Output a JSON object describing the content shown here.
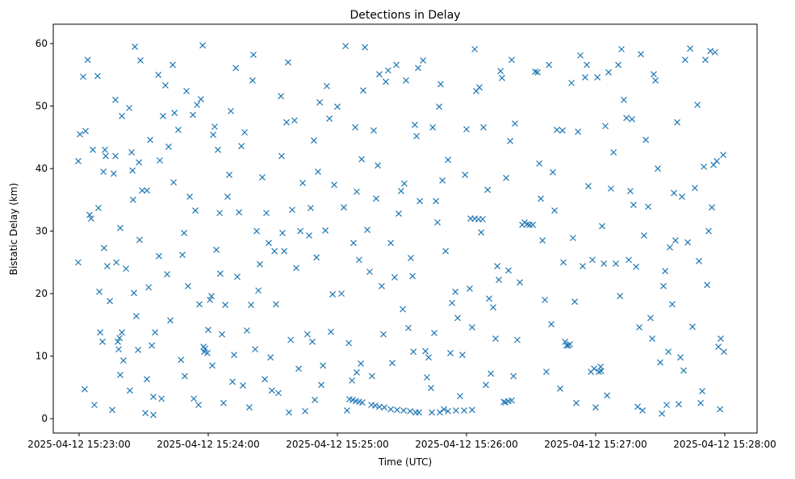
{
  "chart_data": {
    "type": "scatter",
    "title": "Detections in Delay",
    "xlabel": "Time (UTC)",
    "ylabel": "Bistatic Delay (km)",
    "x_units": "seconds after 2025-04-12 15:23:00",
    "xlim": [
      -12,
      315
    ],
    "ylim": [
      -2.3,
      63.1
    ],
    "grid": false,
    "marker": "x",
    "color": "#1f77b4",
    "x_ticks": [
      {
        "value": 0,
        "label": "2025-04-12 15:23:00"
      },
      {
        "value": 60,
        "label": "2025-04-12 15:24:00"
      },
      {
        "value": 120,
        "label": "2025-04-12 15:25:00"
      },
      {
        "value": 180,
        "label": "2025-04-12 15:26:00"
      },
      {
        "value": 240,
        "label": "2025-04-12 15:27:00"
      },
      {
        "value": 300,
        "label": "2025-04-12 15:28:00"
      }
    ],
    "y_ticks": [
      {
        "value": 0,
        "label": "0"
      },
      {
        "value": 10,
        "label": "10"
      },
      {
        "value": 20,
        "label": "20"
      },
      {
        "value": 30,
        "label": "30"
      },
      {
        "value": 40,
        "label": "40"
      },
      {
        "value": 50,
        "label": "50"
      },
      {
        "value": 60,
        "label": "60"
      }
    ],
    "points": [
      [
        -0.4,
        25
      ],
      [
        -0.4,
        41.2
      ],
      [
        0.4,
        45.5
      ],
      [
        1.9,
        54.7
      ],
      [
        3,
        46
      ],
      [
        2.6,
        4.7
      ],
      [
        4,
        57.4
      ],
      [
        4.9,
        32.6
      ],
      [
        5.6,
        32
      ],
      [
        6.4,
        43
      ],
      [
        7.1,
        2.2
      ],
      [
        8.6,
        54.8
      ],
      [
        9,
        33.7
      ],
      [
        9.4,
        20.3
      ],
      [
        9.8,
        13.8
      ],
      [
        10.9,
        12.3
      ],
      [
        11.3,
        39.5
      ],
      [
        11.6,
        27.3
      ],
      [
        12,
        43
      ],
      [
        12.4,
        42
      ],
      [
        13.1,
        24.4
      ],
      [
        14.3,
        18.8
      ],
      [
        15.4,
        1.4
      ],
      [
        16.1,
        39.2
      ],
      [
        16.9,
        42
      ],
      [
        16.9,
        51
      ],
      [
        17.3,
        25
      ],
      [
        18,
        12.3
      ],
      [
        18.4,
        11.1
      ],
      [
        18.8,
        12.9
      ],
      [
        19.1,
        30.5
      ],
      [
        19.1,
        7
      ],
      [
        19.9,
        48.4
      ],
      [
        19.9,
        13.8
      ],
      [
        20.6,
        9.3
      ],
      [
        21.8,
        24
      ],
      [
        23.3,
        49.7
      ],
      [
        23.6,
        4.5
      ],
      [
        24.4,
        42.6
      ],
      [
        24.8,
        39.7
      ],
      [
        25.1,
        35
      ],
      [
        25.5,
        20.1
      ],
      [
        25.9,
        59.5
      ],
      [
        26.6,
        16.4
      ],
      [
        27.4,
        11
      ],
      [
        27.8,
        41
      ],
      [
        28.1,
        28.6
      ],
      [
        28.5,
        57.3
      ],
      [
        29.3,
        36.5
      ],
      [
        30.8,
        0.9
      ],
      [
        31.5,
        36.5
      ],
      [
        31.5,
        6.3
      ],
      [
        32.3,
        21
      ],
      [
        33,
        44.6
      ],
      [
        33.8,
        11.7
      ],
      [
        34.5,
        0.6
      ],
      [
        34.5,
        3.5
      ],
      [
        35.3,
        13.8
      ],
      [
        36.8,
        55
      ],
      [
        37.1,
        26
      ],
      [
        37.5,
        41.3
      ],
      [
        38.3,
        3.2
      ],
      [
        39,
        48.4
      ],
      [
        40.1,
        53.3
      ],
      [
        40.9,
        23.1
      ],
      [
        41.6,
        43.5
      ],
      [
        42.4,
        15.7
      ],
      [
        43.5,
        56.6
      ],
      [
        43.9,
        37.8
      ],
      [
        44.3,
        48.9
      ],
      [
        46.1,
        46.2
      ],
      [
        47.3,
        9.4
      ],
      [
        48,
        26.2
      ],
      [
        48.8,
        29.7
      ],
      [
        49.1,
        6.8
      ],
      [
        49.9,
        52.4
      ],
      [
        50.6,
        21.2
      ],
      [
        51.4,
        35.5
      ],
      [
        52.9,
        48.6
      ],
      [
        53.3,
        3.2
      ],
      [
        54,
        33.3
      ],
      [
        54.8,
        50.2
      ],
      [
        55.5,
        2.2
      ],
      [
        55.9,
        18.3
      ],
      [
        56.6,
        51.1
      ],
      [
        57.4,
        59.7
      ],
      [
        57.8,
        11.5
      ],
      [
        58.1,
        10.7
      ],
      [
        58.5,
        11.2
      ],
      [
        59.6,
        10.5
      ],
      [
        60,
        14.2
      ],
      [
        60.8,
        19
      ],
      [
        61.5,
        19.6
      ],
      [
        61.9,
        8.5
      ],
      [
        62.3,
        45.4
      ],
      [
        63,
        46.7
      ],
      [
        63.8,
        27
      ],
      [
        64.5,
        43
      ],
      [
        65.3,
        32.9
      ],
      [
        65.6,
        23.2
      ],
      [
        66.4,
        13.5
      ],
      [
        67.1,
        2.5
      ],
      [
        67.9,
        18.2
      ],
      [
        69,
        35.5
      ],
      [
        69.8,
        39
      ],
      [
        70.5,
        49.2
      ],
      [
        71.3,
        5.9
      ],
      [
        72,
        10.2
      ],
      [
        72.8,
        56.1
      ],
      [
        73.5,
        22.7
      ],
      [
        74.3,
        33
      ],
      [
        75.4,
        43.6
      ],
      [
        76.1,
        5.3
      ],
      [
        76.9,
        45.8
      ],
      [
        78,
        14.1
      ],
      [
        79.1,
        1.8
      ],
      [
        79.9,
        18.2
      ],
      [
        80.6,
        54.1
      ],
      [
        81,
        58.2
      ],
      [
        81.8,
        11.1
      ],
      [
        82.5,
        30
      ],
      [
        83.3,
        20.5
      ],
      [
        84,
        24.7
      ],
      [
        85.1,
        38.6
      ],
      [
        86.3,
        6.3
      ],
      [
        87,
        32.9
      ],
      [
        88.1,
        28.1
      ],
      [
        88.9,
        9.8
      ],
      [
        89.6,
        4.5
      ],
      [
        90.8,
        26.8
      ],
      [
        91.5,
        18.3
      ],
      [
        92.6,
        4.1
      ],
      [
        93.8,
        51.6
      ],
      [
        94.1,
        42
      ],
      [
        94.5,
        29.7
      ],
      [
        95.3,
        26.8
      ],
      [
        96.4,
        47.4
      ],
      [
        97.1,
        57
      ],
      [
        97.5,
        1
      ],
      [
        98.3,
        12.6
      ],
      [
        99,
        33.4
      ],
      [
        100.1,
        47.7
      ],
      [
        100.9,
        24.1
      ],
      [
        102,
        8
      ],
      [
        102.8,
        30
      ],
      [
        103.9,
        37.7
      ],
      [
        105,
        1.2
      ],
      [
        106.1,
        13.5
      ],
      [
        106.9,
        29.3
      ],
      [
        107.6,
        33.7
      ],
      [
        108.4,
        12.3
      ],
      [
        109.1,
        44.5
      ],
      [
        109.5,
        3
      ],
      [
        110.3,
        25.8
      ],
      [
        111,
        39.5
      ],
      [
        111.8,
        50.6
      ],
      [
        112.5,
        5.4
      ],
      [
        113.3,
        8.5
      ],
      [
        114.4,
        30.1
      ],
      [
        115.1,
        53.2
      ],
      [
        116.3,
        48
      ],
      [
        117,
        13.9
      ],
      [
        117.8,
        19.9
      ],
      [
        118.5,
        37.4
      ],
      [
        120,
        49.9
      ],
      [
        121.9,
        20
      ],
      [
        123,
        33.8
      ],
      [
        123.8,
        59.6
      ],
      [
        124.5,
        1.3
      ],
      [
        125.3,
        12.1
      ],
      [
        125.6,
        3.1
      ],
      [
        127.1,
        3
      ],
      [
        128.6,
        2.8
      ],
      [
        130.1,
        2.7
      ],
      [
        131.6,
        2.6
      ],
      [
        135.8,
        2.2
      ],
      [
        137.6,
        2.1
      ],
      [
        139.5,
        1.9
      ],
      [
        141.8,
        1.8
      ],
      [
        144.8,
        1.5
      ],
      [
        147.8,
        1.4
      ],
      [
        150.8,
        1.3
      ],
      [
        153.8,
        1.2
      ],
      [
        156.4,
        1
      ],
      [
        157.9,
        1
      ],
      [
        126.8,
        6.1
      ],
      [
        129,
        7.4
      ],
      [
        130.9,
        8.8
      ],
      [
        127.5,
        28.1
      ],
      [
        128.3,
        46.6
      ],
      [
        129,
        36.3
      ],
      [
        130.1,
        25.4
      ],
      [
        131.3,
        41.5
      ],
      [
        132,
        52.5
      ],
      [
        132.8,
        59.4
      ],
      [
        133.9,
        30.2
      ],
      [
        135,
        23.5
      ],
      [
        136.1,
        6.8
      ],
      [
        136.9,
        46.1
      ],
      [
        138,
        35.2
      ],
      [
        138.8,
        40.5
      ],
      [
        139.5,
        55.1
      ],
      [
        140.6,
        21.2
      ],
      [
        141.4,
        13.5
      ],
      [
        142.5,
        53.9
      ],
      [
        143.6,
        55.7
      ],
      [
        144.8,
        28.1
      ],
      [
        145.5,
        8.9
      ],
      [
        146.6,
        22.6
      ],
      [
        147.4,
        56.6
      ],
      [
        148.5,
        32.8
      ],
      [
        149.6,
        36.4
      ],
      [
        150.4,
        17.5
      ],
      [
        151.1,
        37.6
      ],
      [
        151.9,
        54.1
      ],
      [
        153,
        14.5
      ],
      [
        154.1,
        25.7
      ],
      [
        154.9,
        22.8
      ],
      [
        155.3,
        10.7
      ],
      [
        156,
        47
      ],
      [
        156.8,
        45.2
      ],
      [
        157.5,
        56.1
      ],
      [
        158.3,
        34.8
      ],
      [
        159.8,
        57.3
      ],
      [
        160.9,
        10.8
      ],
      [
        161.6,
        6.6
      ],
      [
        162.4,
        9.8
      ],
      [
        163.5,
        4.9
      ],
      [
        164.3,
        46.6
      ],
      [
        165,
        13.7
      ],
      [
        165.8,
        34.8
      ],
      [
        166.5,
        31.4
      ],
      [
        167.3,
        49.9
      ],
      [
        168,
        53.5
      ],
      [
        168.8,
        38.1
      ],
      [
        169.5,
        1.5
      ],
      [
        170.3,
        26.8
      ],
      [
        171.4,
        41.4
      ],
      [
        172.5,
        10.5
      ],
      [
        173.3,
        18.5
      ],
      [
        174.8,
        20.3
      ],
      [
        175.9,
        16.1
      ],
      [
        177,
        3.6
      ],
      [
        178.1,
        10.2
      ],
      [
        179.3,
        39
      ],
      [
        180,
        46.3
      ],
      [
        163.9,
        1
      ],
      [
        167.6,
        1
      ],
      [
        171.4,
        1.2
      ],
      [
        175.1,
        1.3
      ],
      [
        178.9,
        1.3
      ],
      [
        182.6,
        1.4
      ],
      [
        181.9,
        32
      ],
      [
        183.8,
        32
      ],
      [
        185.6,
        31.9
      ],
      [
        187.5,
        31.9
      ],
      [
        181.5,
        20.8
      ],
      [
        182.6,
        14.6
      ],
      [
        183.8,
        59.1
      ],
      [
        184.5,
        52.4
      ],
      [
        186,
        53
      ],
      [
        186.8,
        29.8
      ],
      [
        187.9,
        46.6
      ],
      [
        189,
        5.4
      ],
      [
        189.8,
        36.6
      ],
      [
        190.5,
        19.2
      ],
      [
        191.3,
        7.2
      ],
      [
        192.4,
        17.8
      ],
      [
        193.5,
        12.8
      ],
      [
        194.3,
        24.4
      ],
      [
        195,
        22.2
      ],
      [
        195.8,
        55.6
      ],
      [
        196.5,
        54.5
      ],
      [
        197.3,
        2.7
      ],
      [
        198,
        2.6
      ],
      [
        199.5,
        2.8
      ],
      [
        201,
        2.9
      ],
      [
        198.4,
        38.5
      ],
      [
        199.5,
        23.7
      ],
      [
        200.3,
        44.4
      ],
      [
        201,
        57.4
      ],
      [
        201.8,
        6.8
      ],
      [
        202.5,
        47.2
      ],
      [
        203.6,
        12.6
      ],
      [
        204.8,
        21.8
      ],
      [
        205.9,
        31
      ],
      [
        207,
        31.4
      ],
      [
        208.1,
        31.1
      ],
      [
        209.3,
        31
      ],
      [
        210.8,
        31
      ],
      [
        211.9,
        55.5
      ],
      [
        213,
        55.4
      ],
      [
        213.8,
        40.8
      ],
      [
        214.5,
        35.2
      ],
      [
        215.3,
        28.5
      ],
      [
        216.4,
        19
      ],
      [
        217.1,
        7.5
      ],
      [
        218.3,
        56.6
      ],
      [
        219.4,
        15.1
      ],
      [
        220.1,
        39.4
      ],
      [
        220.9,
        33.3
      ],
      [
        222,
        46.2
      ],
      [
        223.5,
        4.8
      ],
      [
        224.6,
        46.1
      ],
      [
        225,
        25
      ],
      [
        225.8,
        12.3
      ],
      [
        226.5,
        11.7
      ],
      [
        227.3,
        11.7
      ],
      [
        228,
        11.9
      ],
      [
        228.8,
        53.7
      ],
      [
        229.5,
        28.9
      ],
      [
        230.3,
        18.7
      ],
      [
        231,
        2.5
      ],
      [
        231.8,
        45.9
      ],
      [
        232.9,
        58.1
      ],
      [
        234,
        24.4
      ],
      [
        235.1,
        54.6
      ],
      [
        235.9,
        56.6
      ],
      [
        236.6,
        37.2
      ],
      [
        237.8,
        7.5
      ],
      [
        238.5,
        25.4
      ],
      [
        239.3,
        8
      ],
      [
        240,
        1.8
      ],
      [
        240.8,
        54.6
      ],
      [
        241.5,
        7.5
      ],
      [
        242.3,
        8.3
      ],
      [
        242.6,
        7.6
      ],
      [
        243,
        30.8
      ],
      [
        243.8,
        24.8
      ],
      [
        244.5,
        46.8
      ],
      [
        245.3,
        3.7
      ],
      [
        246,
        55.4
      ],
      [
        247.1,
        36.8
      ],
      [
        248.3,
        42.6
      ],
      [
        249.4,
        24.8
      ],
      [
        250.5,
        56.6
      ],
      [
        251.3,
        19.6
      ],
      [
        252,
        59.1
      ],
      [
        253.1,
        51
      ],
      [
        254.3,
        48.1
      ],
      [
        255.4,
        25.4
      ],
      [
        256.1,
        36.4
      ],
      [
        256.9,
        47.9
      ],
      [
        257.6,
        34.2
      ],
      [
        258.8,
        24.3
      ],
      [
        259.5,
        1.9
      ],
      [
        260.3,
        14.6
      ],
      [
        261,
        58.3
      ],
      [
        261.8,
        1.3
      ],
      [
        262.5,
        29.3
      ],
      [
        263.3,
        44.6
      ],
      [
        264.4,
        33.9
      ],
      [
        265.5,
        16.1
      ],
      [
        266.3,
        12.8
      ],
      [
        267,
        55.1
      ],
      [
        267.8,
        54.1
      ],
      [
        268.9,
        40
      ],
      [
        270,
        9
      ],
      [
        270.8,
        0.8
      ],
      [
        271.5,
        21.2
      ],
      [
        272.3,
        23.6
      ],
      [
        273,
        2.2
      ],
      [
        273.8,
        10.7
      ],
      [
        274.5,
        27.4
      ],
      [
        275.6,
        18.3
      ],
      [
        276.4,
        36.1
      ],
      [
        277.1,
        28.5
      ],
      [
        277.9,
        47.4
      ],
      [
        278.6,
        2.3
      ],
      [
        279.4,
        9.8
      ],
      [
        280.1,
        35.5
      ],
      [
        280.9,
        7.7
      ],
      [
        281.6,
        57.4
      ],
      [
        282.8,
        28.2
      ],
      [
        283.9,
        59.2
      ],
      [
        285,
        14.7
      ],
      [
        286.1,
        36.9
      ],
      [
        287.3,
        50.2
      ],
      [
        288,
        25.2
      ],
      [
        288.8,
        2.5
      ],
      [
        289.5,
        4.4
      ],
      [
        290.3,
        40.3
      ],
      [
        291,
        57.4
      ],
      [
        291.8,
        21.4
      ],
      [
        292.5,
        30
      ],
      [
        293.3,
        58.8
      ],
      [
        294,
        33.8
      ],
      [
        294.8,
        40.6
      ],
      [
        295.5,
        58.6
      ],
      [
        296.3,
        41.2
      ],
      [
        297,
        11.5
      ],
      [
        297.8,
        1.5
      ],
      [
        298.1,
        12.8
      ],
      [
        299.3,
        42.2
      ],
      [
        299.6,
        10.7
      ]
    ]
  }
}
